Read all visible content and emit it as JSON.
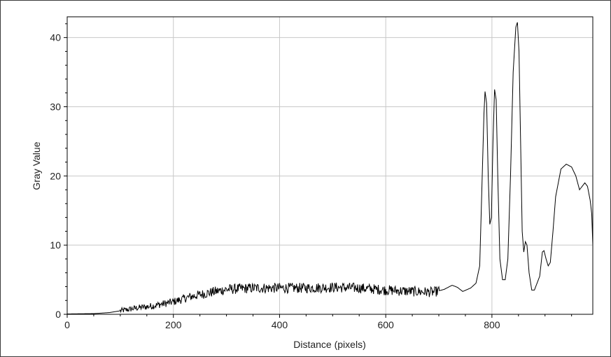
{
  "chart_data": {
    "type": "line",
    "title": "",
    "xlabel": "Distance (pixels)",
    "ylabel": "Gray Value",
    "xlim": [
      0,
      990
    ],
    "ylim": [
      0,
      43
    ],
    "grid": true,
    "legend": "none",
    "colors": {
      "line": "#000000",
      "grid": "#c8c8c8",
      "frame": "#000000"
    },
    "x_ticks": [
      0,
      200,
      400,
      600,
      800
    ],
    "y_ticks": [
      0,
      10,
      20,
      30,
      40
    ],
    "series": [
      {
        "noise_start": 100,
        "noise_end": 700,
        "points": [
          [
            0,
            0.05
          ],
          [
            50,
            0.1
          ],
          [
            80,
            0.25
          ],
          [
            100,
            0.5
          ],
          [
            130,
            0.9
          ],
          [
            160,
            1.2
          ],
          [
            200,
            1.8
          ],
          [
            230,
            2.5
          ],
          [
            260,
            3.0
          ],
          [
            300,
            3.6
          ],
          [
            350,
            3.8
          ],
          [
            400,
            3.8
          ],
          [
            450,
            3.8
          ],
          [
            500,
            3.9
          ],
          [
            550,
            3.8
          ],
          [
            600,
            3.5
          ],
          [
            650,
            3.3
          ],
          [
            690,
            3.2
          ],
          [
            710,
            3.6
          ],
          [
            725,
            4.2
          ],
          [
            735,
            3.9
          ],
          [
            745,
            3.3
          ],
          [
            760,
            3.8
          ],
          [
            770,
            4.5
          ],
          [
            777,
            7.0
          ],
          [
            781,
            18.0
          ],
          [
            785,
            29.0
          ],
          [
            787,
            32.2
          ],
          [
            790,
            30.5
          ],
          [
            793,
            20.0
          ],
          [
            796,
            13.0
          ],
          [
            799,
            14.0
          ],
          [
            802,
            25.0
          ],
          [
            805,
            32.5
          ],
          [
            808,
            31.0
          ],
          [
            811,
            20.0
          ],
          [
            815,
            8.0
          ],
          [
            820,
            5.0
          ],
          [
            825,
            5.0
          ],
          [
            830,
            8.0
          ],
          [
            835,
            20.0
          ],
          [
            840,
            35.0
          ],
          [
            845,
            41.5
          ],
          [
            848,
            42.2
          ],
          [
            851,
            38.0
          ],
          [
            854,
            25.0
          ],
          [
            857,
            12.0
          ],
          [
            860,
            9.0
          ],
          [
            863,
            10.5
          ],
          [
            866,
            10.0
          ],
          [
            870,
            6.0
          ],
          [
            875,
            3.5
          ],
          [
            880,
            3.5
          ],
          [
            885,
            4.5
          ],
          [
            890,
            5.5
          ],
          [
            895,
            9.0
          ],
          [
            898,
            9.2
          ],
          [
            902,
            8.0
          ],
          [
            906,
            7.0
          ],
          [
            910,
            7.5
          ],
          [
            915,
            12.0
          ],
          [
            920,
            17.0
          ],
          [
            930,
            21.0
          ],
          [
            940,
            21.7
          ],
          [
            950,
            21.3
          ],
          [
            958,
            20.0
          ],
          [
            965,
            18.0
          ],
          [
            970,
            18.5
          ],
          [
            975,
            19.0
          ],
          [
            980,
            18.5
          ],
          [
            985,
            16.5
          ],
          [
            988,
            14.5
          ],
          [
            990,
            10.0
          ]
        ]
      }
    ]
  }
}
